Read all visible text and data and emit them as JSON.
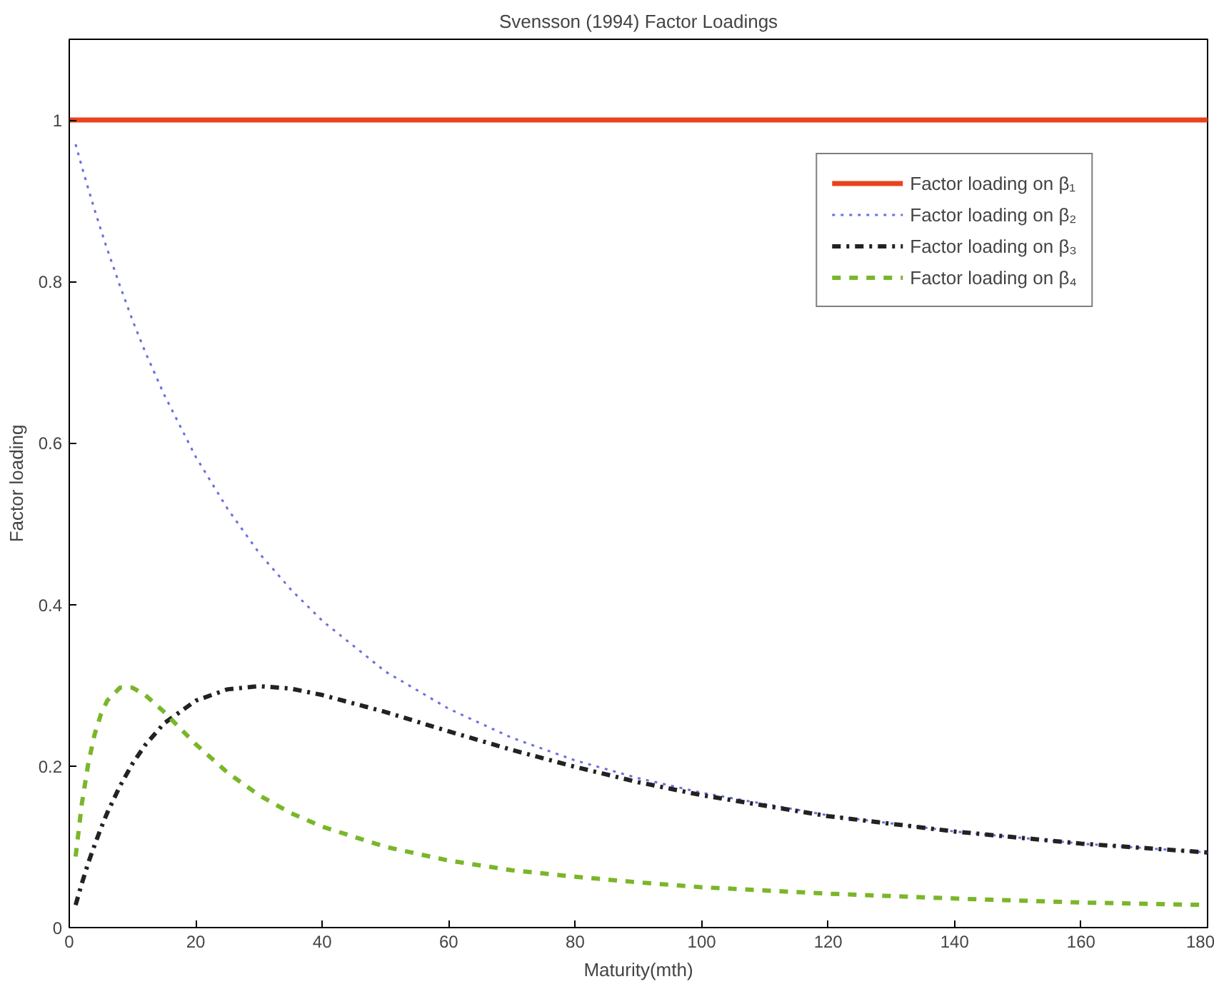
{
  "chart_data": {
    "type": "line",
    "title": "Svensson (1994) Factor Loadings",
    "xlabel": "Maturity(mth)",
    "ylabel": "Factor loading",
    "x": [
      1,
      2,
      3,
      4,
      5,
      6,
      8,
      10,
      12,
      15,
      20,
      25,
      30,
      35,
      40,
      50,
      60,
      70,
      80,
      90,
      100,
      120,
      140,
      160,
      180
    ],
    "series": [
      {
        "name": "Factor loading on β₁",
        "color": "#e8431c",
        "line_style": "solid",
        "x": [
          0,
          180
        ],
        "values": [
          1,
          1
        ]
      },
      {
        "name": "Factor loading on β₂",
        "color": "#6a6ee0",
        "line_style": "dotted",
        "values": [
          0.97,
          0.942,
          0.915,
          0.889,
          0.864,
          0.84,
          0.795,
          0.752,
          0.713,
          0.66,
          0.583,
          0.519,
          0.464,
          0.419,
          0.38,
          0.317,
          0.271,
          0.235,
          0.207,
          0.185,
          0.167,
          0.139,
          0.119,
          0.104,
          0.093
        ]
      },
      {
        "name": "Factor loading on β₃",
        "color": "#222222",
        "line_style": "dashdot",
        "values": [
          0.028,
          0.055,
          0.08,
          0.102,
          0.123,
          0.142,
          0.175,
          0.203,
          0.226,
          0.253,
          0.281,
          0.295,
          0.299,
          0.296,
          0.288,
          0.267,
          0.243,
          0.22,
          0.199,
          0.18,
          0.164,
          0.138,
          0.119,
          0.104,
          0.093
        ]
      },
      {
        "name": "Factor loading on β₄",
        "color": "#7ab62a",
        "line_style": "dashed",
        "values": [
          0.088,
          0.154,
          0.203,
          0.239,
          0.264,
          0.281,
          0.297,
          0.297,
          0.288,
          0.267,
          0.227,
          0.192,
          0.164,
          0.142,
          0.125,
          0.1,
          0.083,
          0.071,
          0.063,
          0.056,
          0.05,
          0.042,
          0.036,
          0.031,
          0.028
        ]
      }
    ],
    "xlim": [
      0,
      180
    ],
    "ylim": [
      0,
      1.1
    ],
    "xticks": [
      0,
      20,
      40,
      60,
      80,
      100,
      120,
      140,
      160,
      180
    ],
    "yticks": [
      0,
      0.2,
      0.4,
      0.6,
      0.8,
      1
    ],
    "legend": "top right",
    "grid": false
  }
}
